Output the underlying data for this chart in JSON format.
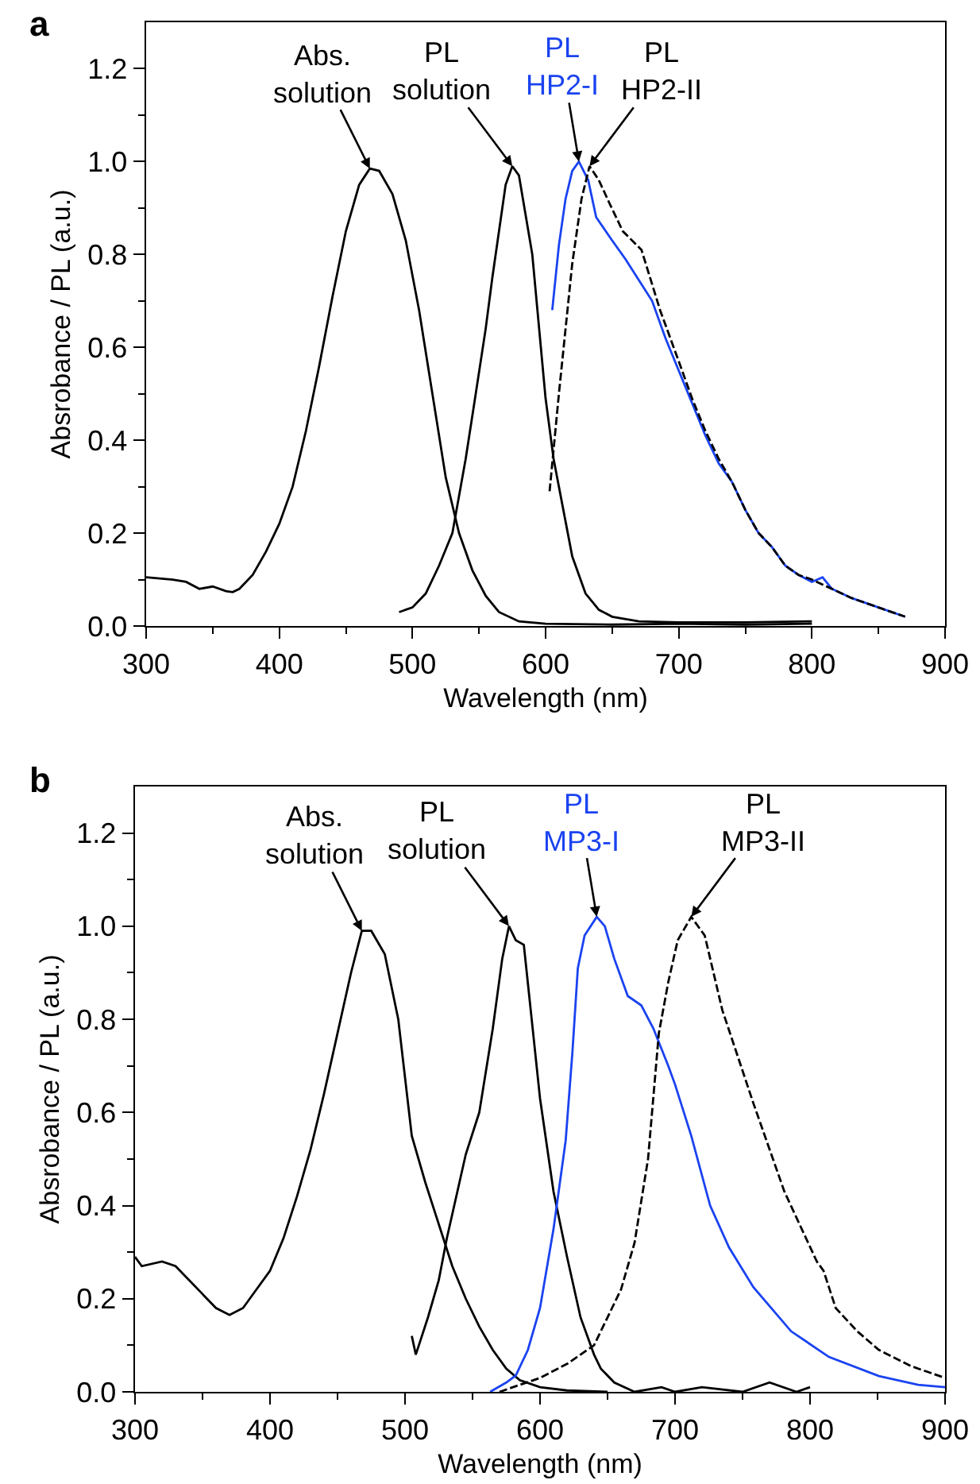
{
  "chart_data": [
    {
      "type": "line",
      "title": "a",
      "xlabel": "Wavelength (nm)",
      "ylabel": "Absrobance / PL (a.u.)",
      "xlim": [
        300,
        900
      ],
      "ylim": [
        0,
        1.3
      ],
      "xticks": [
        300,
        {
          "value": 350,
          "label": null
        },
        400,
        {
          "value": 450,
          "label": null
        },
        500,
        {
          "value": 550,
          "label": null
        },
        600,
        {
          "value": 650,
          "label": null
        },
        700,
        {
          "value": 750,
          "label": null
        },
        800,
        {
          "value": 850,
          "label": null
        },
        900
      ],
      "yticks": [
        {
          "value": 0,
          "label": "0.0"
        },
        {
          "value": 0.1,
          "label": null
        },
        {
          "value": 0.2,
          "label": "0.2"
        },
        {
          "value": 0.3,
          "label": null
        },
        {
          "value": 0.4,
          "label": "0.4"
        },
        {
          "value": 0.5,
          "label": null
        },
        {
          "value": 0.6,
          "label": "0.6"
        },
        {
          "value": 0.7,
          "label": null
        },
        {
          "value": 0.8,
          "label": "0.8"
        },
        {
          "value": 0.9,
          "label": null
        },
        {
          "value": 1.0,
          "label": "1.0"
        },
        {
          "value": 1.1,
          "label": null
        },
        {
          "value": 1.2,
          "label": "1.2"
        }
      ],
      "grid": false,
      "legend": false,
      "series": [
        {
          "name": "Abs. solution",
          "color": "#000000",
          "line_style": "solid",
          "x": [
            300,
            320,
            330,
            340,
            350,
            360,
            365,
            370,
            380,
            390,
            400,
            410,
            420,
            430,
            440,
            450,
            460,
            468,
            475,
            485,
            495,
            505,
            515,
            525,
            535,
            545,
            555,
            565,
            580,
            600,
            650,
            700,
            750,
            800
          ],
          "values": [
            0.105,
            0.1,
            0.095,
            0.08,
            0.085,
            0.075,
            0.073,
            0.08,
            0.11,
            0.16,
            0.22,
            0.3,
            0.42,
            0.56,
            0.71,
            0.85,
            0.95,
            0.985,
            0.98,
            0.93,
            0.83,
            0.68,
            0.5,
            0.32,
            0.2,
            0.12,
            0.065,
            0.03,
            0.01,
            0.005,
            0.003,
            0.005,
            0.003,
            0.005
          ]
        },
        {
          "name": "PL solution",
          "color": "#000000",
          "line_style": "solid",
          "x": [
            490,
            500,
            510,
            520,
            530,
            540,
            547,
            555,
            560,
            570,
            575,
            580,
            590,
            600,
            606,
            610,
            620,
            630,
            640,
            650,
            670,
            700,
            750,
            800
          ],
          "values": [
            0.03,
            0.04,
            0.07,
            0.13,
            0.2,
            0.36,
            0.49,
            0.64,
            0.75,
            0.95,
            0.99,
            0.97,
            0.8,
            0.49,
            0.36,
            0.3,
            0.15,
            0.07,
            0.035,
            0.02,
            0.01,
            0.008,
            0.008,
            0.01
          ]
        },
        {
          "name": "PL HP2-I",
          "color": "#1a43f0",
          "line_style": "solid",
          "x": [
            605,
            610,
            615,
            620,
            625,
            632,
            638,
            650,
            660,
            670,
            680,
            690,
            700,
            710,
            720,
            730,
            740,
            750,
            760,
            770,
            780,
            790,
            800,
            808,
            815,
            830,
            850,
            870
          ],
          "values": [
            0.68,
            0.82,
            0.92,
            0.98,
            1.0,
            0.96,
            0.88,
            0.83,
            0.79,
            0.745,
            0.7,
            0.62,
            0.55,
            0.48,
            0.41,
            0.35,
            0.31,
            0.25,
            0.2,
            0.17,
            0.13,
            0.11,
            0.095,
            0.105,
            0.08,
            0.06,
            0.04,
            0.02
          ]
        },
        {
          "name": "PL HP2-II",
          "color": "#000000",
          "line_style": "dashed",
          "x": [
            603,
            610,
            620,
            627,
            633,
            640,
            648,
            658,
            672,
            686,
            700,
            710,
            720,
            730,
            740,
            750,
            760,
            770,
            780,
            790,
            800,
            815,
            830,
            850,
            870
          ],
          "values": [
            0.29,
            0.5,
            0.78,
            0.92,
            0.99,
            0.96,
            0.91,
            0.85,
            0.81,
            0.68,
            0.57,
            0.49,
            0.42,
            0.36,
            0.31,
            0.25,
            0.2,
            0.17,
            0.13,
            0.11,
            0.1,
            0.08,
            0.06,
            0.04,
            0.02
          ]
        }
      ]
    },
    {
      "type": "line",
      "title": "b",
      "xlabel": "Wavelength (nm)",
      "ylabel": "Absrobance / PL (a.u.)",
      "xlim": [
        300,
        900
      ],
      "ylim": [
        0,
        1.3
      ],
      "xticks": [
        300,
        {
          "value": 350,
          "label": null
        },
        400,
        {
          "value": 450,
          "label": null
        },
        500,
        {
          "value": 550,
          "label": null
        },
        600,
        {
          "value": 650,
          "label": null
        },
        700,
        {
          "value": 750,
          "label": null
        },
        800,
        {
          "value": 850,
          "label": null
        },
        900
      ],
      "yticks": [
        {
          "value": 0,
          "label": "0.0"
        },
        {
          "value": 0.1,
          "label": null
        },
        {
          "value": 0.2,
          "label": "0.2"
        },
        {
          "value": 0.3,
          "label": null
        },
        {
          "value": 0.4,
          "label": "0.4"
        },
        {
          "value": 0.5,
          "label": null
        },
        {
          "value": 0.6,
          "label": "0.6"
        },
        {
          "value": 0.7,
          "label": null
        },
        {
          "value": 0.8,
          "label": "0.8"
        },
        {
          "value": 0.9,
          "label": null
        },
        {
          "value": 1.0,
          "label": "1.0"
        },
        {
          "value": 1.1,
          "label": null
        },
        {
          "value": 1.2,
          "label": "1.2"
        }
      ],
      "grid": false,
      "legend": false,
      "series": [
        {
          "name": "Abs. solution",
          "color": "#000000",
          "line_style": "solid",
          "x": [
            300,
            305,
            320,
            330,
            340,
            350,
            360,
            370,
            380,
            390,
            400,
            410,
            420,
            430,
            440,
            450,
            460,
            468,
            475,
            485,
            495,
            505,
            515,
            525,
            535,
            545,
            555,
            565,
            575,
            585,
            600,
            620,
            650
          ],
          "values": [
            0.29,
            0.27,
            0.28,
            0.27,
            0.24,
            0.21,
            0.18,
            0.165,
            0.18,
            0.22,
            0.26,
            0.33,
            0.42,
            0.52,
            0.64,
            0.77,
            0.9,
            0.99,
            0.99,
            0.94,
            0.8,
            0.55,
            0.45,
            0.36,
            0.27,
            0.2,
            0.14,
            0.09,
            0.05,
            0.025,
            0.01,
            0.003,
            0.0
          ]
        },
        {
          "name": "PL solution",
          "color": "#000000",
          "line_style": "solid",
          "x": [
            505,
            508,
            517,
            525,
            531,
            545,
            555,
            565,
            572,
            577,
            582,
            588,
            592,
            600,
            610,
            620,
            630,
            640,
            645,
            655,
            670,
            690,
            700,
            720,
            750,
            770,
            790,
            800
          ],
          "values": [
            0.12,
            0.08,
            0.16,
            0.24,
            0.33,
            0.51,
            0.6,
            0.78,
            0.93,
            1.0,
            0.97,
            0.96,
            0.85,
            0.63,
            0.43,
            0.29,
            0.16,
            0.08,
            0.05,
            0.02,
            0.0,
            0.01,
            0.0,
            0.01,
            0.0,
            0.02,
            0.0,
            0.01
          ]
        },
        {
          "name": "PL MP3-I",
          "color": "#1a43f0",
          "line_style": "solid",
          "x": [
            563,
            575,
            582,
            591,
            600,
            610,
            619,
            624,
            628,
            633,
            642,
            648,
            655,
            665,
            675,
            684,
            695,
            700,
            712,
            726,
            740,
            758,
            786,
            814,
            851,
            880,
            900
          ],
          "values": [
            0.0,
            0.02,
            0.035,
            0.09,
            0.18,
            0.35,
            0.54,
            0.73,
            0.91,
            0.98,
            1.02,
            1.0,
            0.93,
            0.85,
            0.83,
            0.78,
            0.7,
            0.66,
            0.55,
            0.4,
            0.31,
            0.225,
            0.13,
            0.075,
            0.034,
            0.015,
            0.01
          ]
        },
        {
          "name": "PL MP3-II",
          "color": "#000000",
          "line_style": "dashed",
          "x": [
            570,
            600,
            620,
            640,
            660,
            670,
            680,
            688,
            695,
            702,
            712,
            722,
            735,
            758,
            781,
            805,
            810,
            819,
            835,
            851,
            875,
            900
          ],
          "values": [
            0.0,
            0.03,
            0.06,
            0.1,
            0.22,
            0.32,
            0.5,
            0.77,
            0.88,
            0.97,
            1.02,
            0.98,
            0.82,
            0.62,
            0.43,
            0.28,
            0.26,
            0.18,
            0.13,
            0.09,
            0.055,
            0.03
          ]
        }
      ]
    }
  ]
}
